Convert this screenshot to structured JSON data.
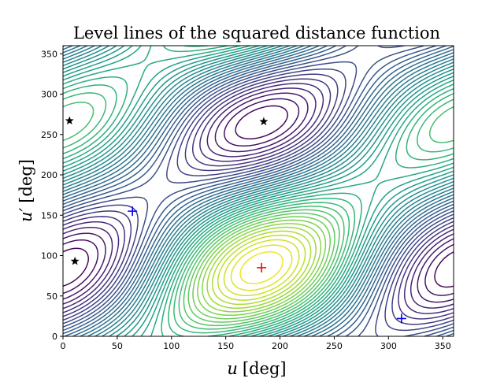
{
  "chart_data": {
    "type": "contour",
    "title": "Level lines of the squared distance function",
    "xlabel_var": "u",
    "xlabel_unit": "[deg]",
    "ylabel_var": "u′",
    "ylabel_unit": "[deg]",
    "xlim": [
      0,
      360
    ],
    "ylim": [
      0,
      360
    ],
    "xticks": [
      0,
      50,
      100,
      150,
      200,
      250,
      300,
      350
    ],
    "yticks": [
      0,
      50,
      100,
      150,
      200,
      250,
      300,
      350
    ],
    "colormap": "viridis",
    "maximum": {
      "x": 183,
      "y": 85
    },
    "markers": {
      "stars": {
        "color": "#000000",
        "points": [
          [
            6,
            267
          ],
          [
            11,
            93
          ],
          [
            185,
            266
          ]
        ]
      },
      "blue_plus": {
        "color": "#0000ff",
        "points": [
          [
            64,
            155
          ],
          [
            312,
            22
          ]
        ]
      },
      "red_plus": {
        "color": "#ff0000",
        "points": [
          [
            183,
            85
          ]
        ]
      }
    }
  }
}
